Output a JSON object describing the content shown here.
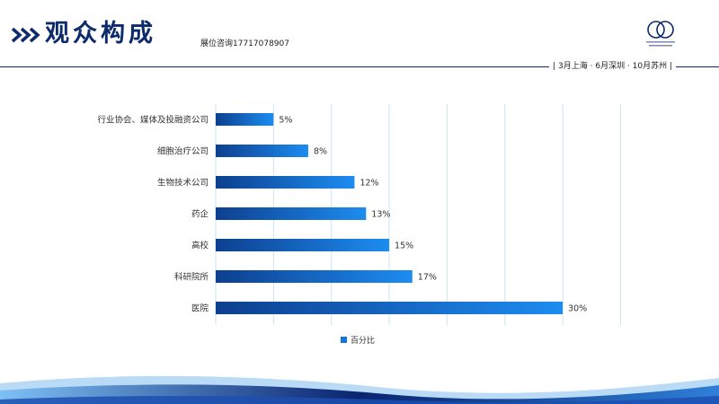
{
  "header": {
    "title": "观众构成",
    "subtitle": "展位咨询17717078907",
    "schedule": "| 3月上海 · 6月深圳 · 10月苏州 |",
    "logo_icon": "conference-rings-logo",
    "chevron_icon": "double-chevron-right-icon"
  },
  "chart_data": {
    "type": "bar",
    "orientation": "horizontal",
    "categories": [
      "行业协会、媒体及投融资公司",
      "细胞治疗公司",
      "生物技术公司",
      "药企",
      "高校",
      "科研院所",
      "医院"
    ],
    "series": [
      {
        "name": "百分比",
        "values": [
          5,
          8,
          12,
          13,
          15,
          17,
          30
        ]
      }
    ],
    "data_labels": [
      "5%",
      "8%",
      "12%",
      "13%",
      "15%",
      "17%",
      "30%"
    ],
    "xlim": [
      0,
      35
    ],
    "grid": true,
    "legend_position": "bottom-center",
    "colors": {
      "bar_start": "#0d3f8f",
      "bar_end": "#1d8cf0",
      "grid": "#cde3f2"
    }
  },
  "colors": {
    "brand": "#0d2a6b",
    "accent": "#1474d8",
    "wave_light": "#5fa8ec",
    "wave_dark": "#0a2470"
  }
}
